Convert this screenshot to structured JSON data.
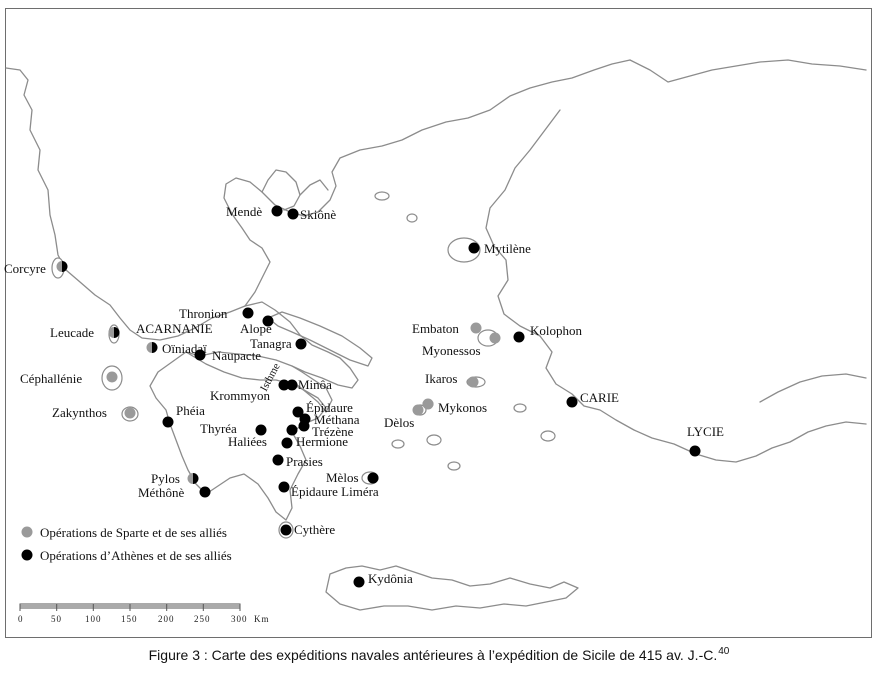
{
  "places": {
    "corcyre": "Corcyre",
    "leucade": "Leucade",
    "acarnanie": "ACARNANIE",
    "oiniadai": "Oïniadaï",
    "cephallenie": "Céphallénie",
    "zakynthos": "Zakynthos",
    "pheia": "Phéia",
    "pylos": "Pylos",
    "methone": "Méthônè",
    "thronion": "Thronion",
    "alope": "Alopè",
    "naupacte": "Naupacte",
    "tanagra": "Tanagra",
    "isthme": "Isthme",
    "krommyon": "Krommyon",
    "minoa": "Minôa",
    "epidaure": "Épidaure",
    "methana": "Méthana",
    "trezene": "Trézène",
    "thyrea": "Thyréa",
    "haliees": "Haliées",
    "hermione": "Hermione",
    "prasies": "Prasies",
    "epidaure_limera": "Épidaure Liméra",
    "cythere": "Cythère",
    "melos": "Mèlos",
    "kydonia": "Kydônia",
    "mende": "Mendè",
    "skione": "Skiônè",
    "mytilene": "Mytilène",
    "embaton": "Embaton",
    "myonessos": "Myonessos",
    "kolophon": "Kolophon",
    "ikaros": "Ikaros",
    "mykonos": "Mykonos",
    "delos": "Dèlos",
    "carie": "CARIE",
    "lycie": "LYCIE"
  },
  "legend": {
    "sparta": "Opérations de Sparte et de ses alliés",
    "athens": "Opérations d’Athènes et de ses alliés",
    "sparta_color": "#9a9a9a",
    "athens_color": "#000000"
  },
  "scale": {
    "ticks": [
      "0",
      "50",
      "100",
      "150",
      "200",
      "250",
      "300"
    ],
    "unit": "Km"
  },
  "caption": {
    "text": "Figure 3 : Carte des expéditions navales antérieures à l’expédition de Sicile de 415 av. J.-C.",
    "note": "40"
  }
}
